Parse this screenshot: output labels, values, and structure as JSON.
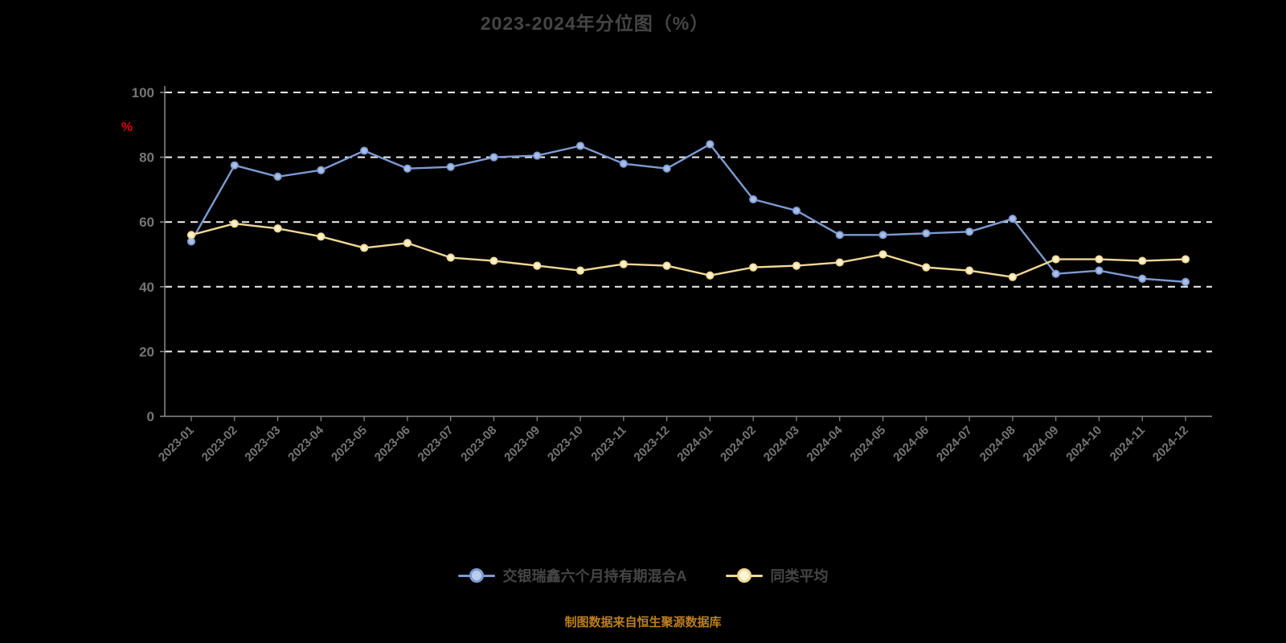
{
  "title": "2023-2024年分位图（%）",
  "ylabel": "%",
  "footnote": "制图数据来自恒生聚源数据库",
  "colors": {
    "background": "#000000",
    "title": "#454545",
    "axis": "#8a8a8a",
    "grid": "#f0f0f0",
    "tick_label": "#757575",
    "ylabel": "#e00000",
    "footnote": "#bd7e1e",
    "legend_text": "#454545"
  },
  "chart_data": {
    "type": "line",
    "x": [
      "2023-01",
      "2023-02",
      "2023-03",
      "2023-04",
      "2023-05",
      "2023-06",
      "2023-07",
      "2023-08",
      "2023-09",
      "2023-10",
      "2023-11",
      "2023-12",
      "2024-01",
      "2024-02",
      "2024-03",
      "2024-04",
      "2024-05",
      "2024-06",
      "2024-07",
      "2024-08",
      "2024-09",
      "2024-10",
      "2024-11",
      "2024-12"
    ],
    "series": [
      {
        "name": "交银瑞鑫六个月持有期混合A",
        "color": "#7d9ad1",
        "marker_fill": "#a9bfe6",
        "values": [
          54,
          77.5,
          74,
          76,
          82,
          76.5,
          77,
          80,
          80.5,
          83.5,
          78,
          76.5,
          84,
          67,
          63.5,
          56,
          56,
          56.5,
          57,
          61,
          44,
          45,
          42.5,
          41.5
        ]
      },
      {
        "name": "同类平均",
        "color": "#f0d894",
        "marker_fill": "#fbf1cd",
        "values": [
          56,
          59.5,
          58,
          55.5,
          52,
          53.5,
          49,
          48,
          46.5,
          45,
          47,
          46.5,
          43.5,
          46,
          46.5,
          47.5,
          50,
          46,
          45,
          43,
          48.5,
          48.5,
          48,
          48.5
        ]
      }
    ],
    "ylim": [
      0,
      100
    ],
    "yticks": [
      0,
      20,
      40,
      60,
      80,
      100
    ],
    "grid": "dashed-horizontal",
    "legend_position": "bottom"
  }
}
